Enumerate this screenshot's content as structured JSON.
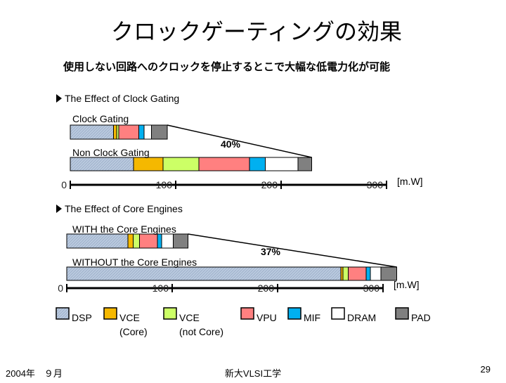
{
  "title": "クロックゲーティングの効果",
  "subtitle": "使用しない回路へのクロックを停止するとこで大幅な低電力化が可能",
  "legend": [
    {
      "name": "DSP",
      "color": "#b9c9de"
    },
    {
      "name": "VCE\n(Core)",
      "color": "#f5b800"
    },
    {
      "name": "VCE\n(not Core)",
      "color": "#ccff66"
    },
    {
      "name": "VPU",
      "color": "#ff8080"
    },
    {
      "name": "MIF",
      "color": "#00b0f0"
    },
    {
      "name": "DRAM",
      "color": "#ffffff"
    },
    {
      "name": "PAD",
      "color": "#808080"
    }
  ],
  "chart_data": [
    {
      "type": "stacked-bar-horizontal",
      "title": "The Effect of Clock Gating",
      "categories": [
        "Clock Gating",
        "Non Clock Gating"
      ],
      "series": [
        {
          "values": [
            41,
            60
          ]
        },
        {
          "values": [
            3,
            28
          ]
        },
        {
          "values": [
            2,
            34
          ]
        },
        {
          "values": [
            19,
            48
          ]
        },
        {
          "values": [
            5,
            15
          ]
        },
        {
          "values": [
            7,
            31
          ]
        },
        {
          "values": [
            15,
            13
          ]
        }
      ],
      "annotation": "40%",
      "x_unit": "[m.W]",
      "xlim": [
        0,
        300
      ],
      "xticks": [
        0,
        100,
        200,
        300
      ]
    },
    {
      "type": "stacked-bar-horizontal",
      "title": "The Effect of Core Engines",
      "categories": [
        "WITH the Core Engines",
        "WITHOUT the Core Engines"
      ],
      "series": [
        {
          "values": [
            58,
            260
          ]
        },
        {
          "values": [
            5,
            2
          ]
        },
        {
          "values": [
            6,
            5
          ]
        },
        {
          "values": [
            17,
            17
          ]
        },
        {
          "values": [
            4,
            4
          ]
        },
        {
          "values": [
            11,
            10
          ]
        },
        {
          "values": [
            14,
            15
          ]
        }
      ],
      "annotation": "37%",
      "x_unit": "[m.W]",
      "xlim": [
        0,
        300
      ],
      "xticks": [
        0,
        100,
        200,
        300
      ]
    }
  ],
  "footer": {
    "date": "2004年　９月",
    "center": "新大VLSI工学",
    "page": "29"
  }
}
